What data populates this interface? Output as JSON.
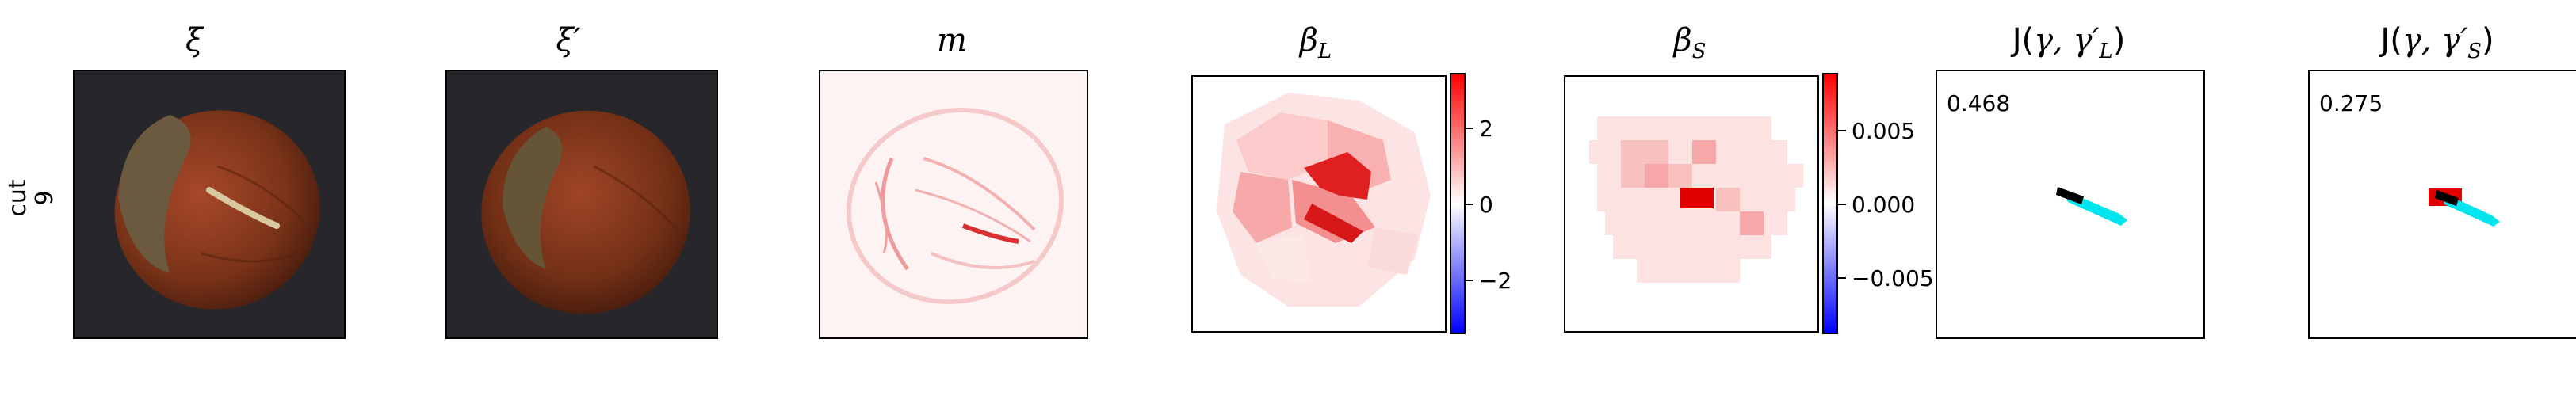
{
  "row_label": "cut\n9",
  "panels": [
    {
      "title": "ξ",
      "kind": "image"
    },
    {
      "title": "ξ′",
      "kind": "image"
    },
    {
      "title": "m",
      "kind": "map"
    },
    {
      "title": "β",
      "subscript": "L",
      "kind": "heatmap"
    },
    {
      "title": "β",
      "subscript": "S",
      "kind": "heatmap"
    },
    {
      "title_prefix": "J(",
      "title_math": "γ, γ′",
      "subscript": "L",
      "title_suffix": ")",
      "score": "0.468",
      "kind": "overlap"
    },
    {
      "title_prefix": "J(",
      "title_math": "γ, γ′",
      "subscript": "S",
      "title_suffix": ")",
      "score": "0.275",
      "kind": "overlap"
    }
  ],
  "colorbars": {
    "beta_L": {
      "ticks": [
        "2",
        "0",
        "−2"
      ],
      "range": [
        -3.4,
        3.4
      ],
      "values": [
        2,
        0,
        -2
      ]
    },
    "beta_S": {
      "ticks": [
        "0.005",
        "0.000",
        "−0.005"
      ],
      "range": [
        -0.0088,
        0.0088
      ],
      "values": [
        0.005,
        0.0,
        -0.005
      ]
    }
  },
  "colors": {
    "positive": "#ff0000",
    "negative": "#0000ff",
    "dark_bg": "#27262a",
    "nut": "#7a3318",
    "cap": "#6b5a3f",
    "gt_mask": "#000000",
    "pred_mask": "#00e5ee"
  }
}
